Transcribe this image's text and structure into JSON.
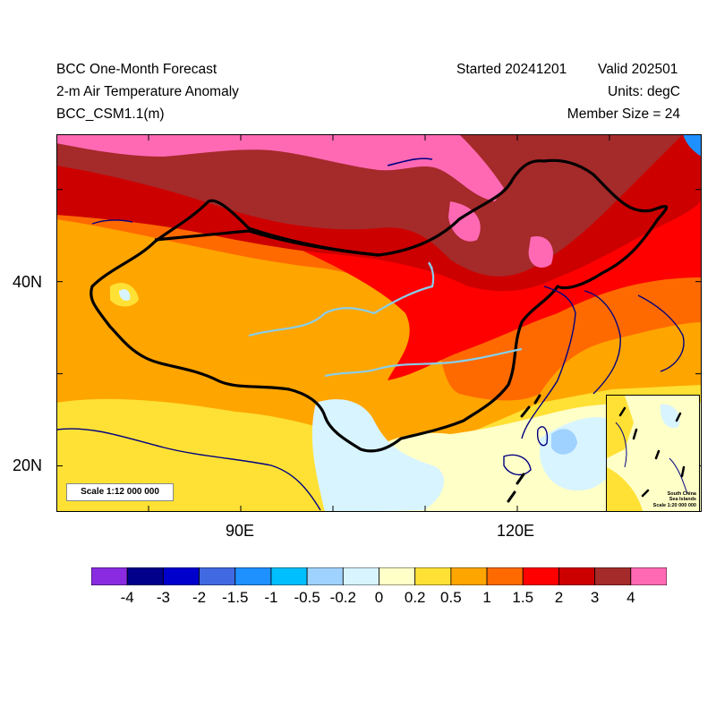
{
  "header": {
    "title_line1": "BCC One-Month Forecast",
    "title_line2": "2-m Air Temperature Anomaly",
    "title_line3": "BCC_CSM1.1(m)",
    "started": "Started 20241201",
    "valid": "Valid 202501",
    "units": "Units: degC",
    "member_size": "Member Size = 24"
  },
  "map": {
    "lat_labels": [
      "40N",
      "20N"
    ],
    "lon_labels": [
      "90E",
      "120E"
    ],
    "scale_label": "Scale 1:12 000 000",
    "inset_label": "South China\nSea Islands\nScale 1:20 000 000",
    "extent": {
      "lon": [
        70,
        140
      ],
      "lat": [
        15,
        56
      ]
    },
    "lat_ticks": [
      20,
      30,
      40,
      50
    ],
    "lon_ticks": [
      80,
      90,
      100,
      110,
      120,
      130
    ]
  },
  "colorbar": {
    "labels": [
      "-4",
      "-3",
      "-2",
      "-1.5",
      "-1",
      "-0.5",
      "-0.2",
      "0",
      "0.2",
      "0.5",
      "1",
      "1.5",
      "2",
      "3",
      "4"
    ],
    "colors": [
      "#8a2be2",
      "#00008b",
      "#0000cd",
      "#4169e1",
      "#1e90ff",
      "#00bfff",
      "#a0d2ff",
      "#d8f4ff",
      "#ffffc8",
      "#ffe135",
      "#ffa500",
      "#ff6a00",
      "#ff0000",
      "#cd0000",
      "#a52a2a",
      "#ff69b4"
    ],
    "levels": [
      -4,
      -3,
      -2,
      -1.5,
      -1,
      -0.5,
      -0.2,
      0,
      0.2,
      0.5,
      1,
      1.5,
      2,
      3,
      4
    ]
  }
}
